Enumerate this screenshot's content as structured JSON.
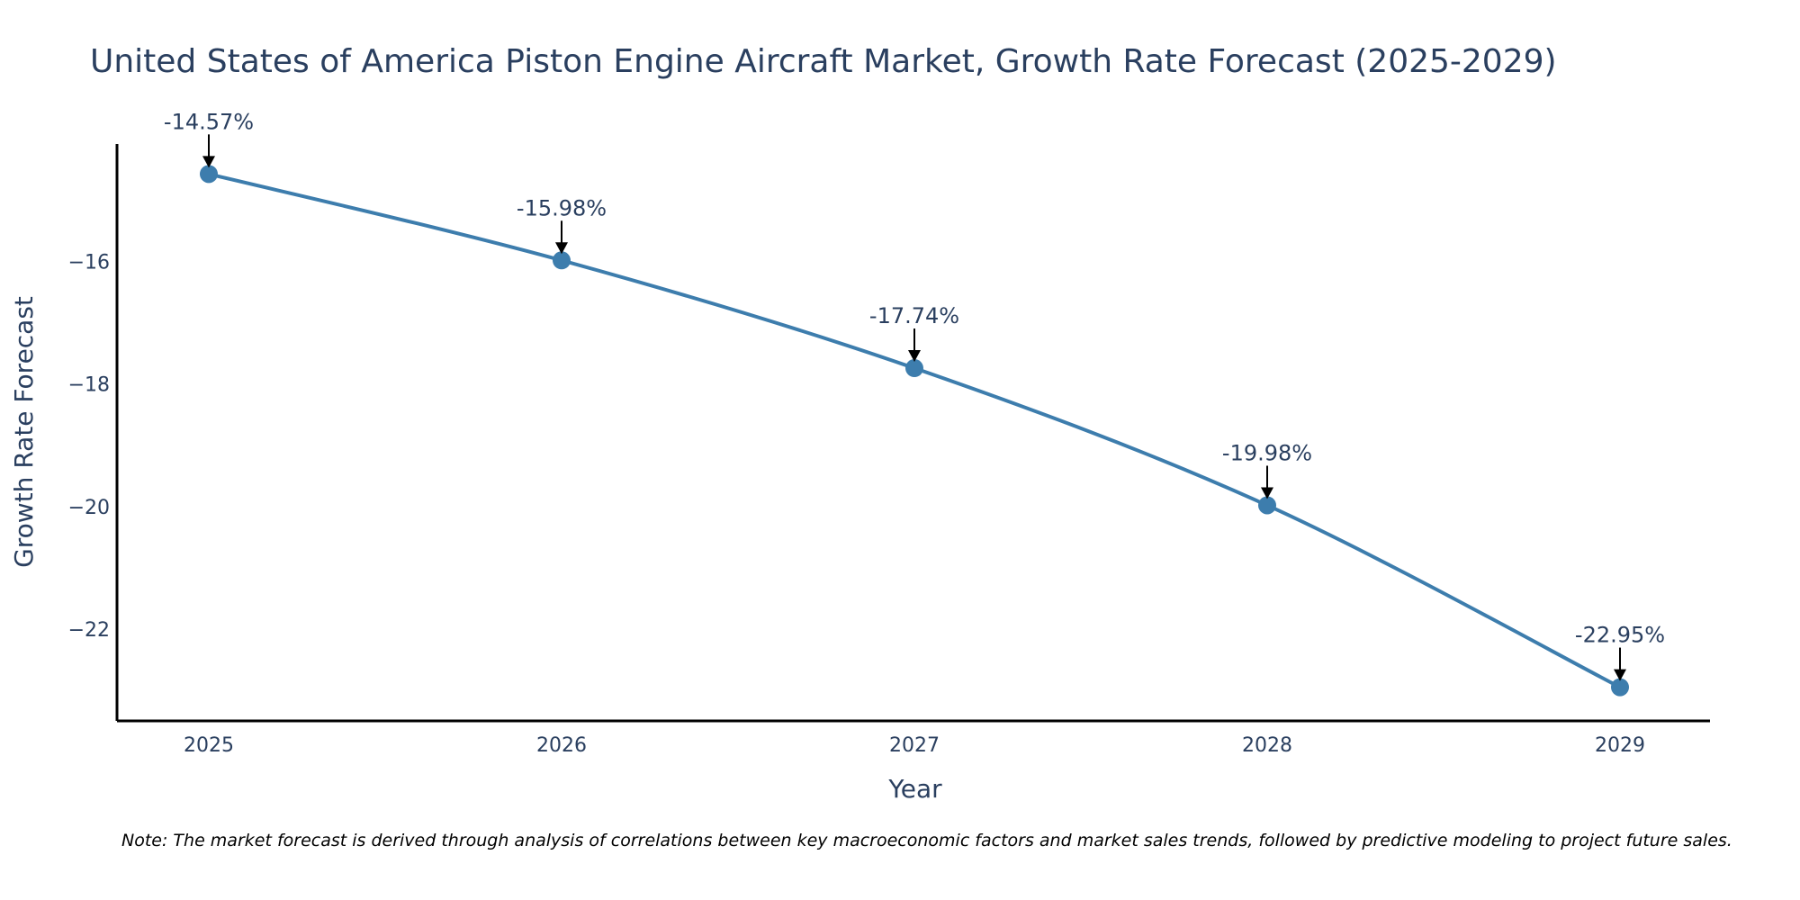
{
  "colors": {
    "line": "#3d7dad",
    "marker": "#3d7dad",
    "axis": "#000000",
    "text": "#2a3f5f",
    "arrow": "#000000"
  },
  "chart_data": {
    "type": "line",
    "title": "United States of America Piston Engine Aircraft Market, Growth Rate Forecast (2025-2029)",
    "xlabel": "Year",
    "ylabel": "Growth Rate Forecast",
    "categories": [
      "2025",
      "2026",
      "2027",
      "2028",
      "2029"
    ],
    "series": [
      {
        "name": "Growth Rate Forecast",
        "values": [
          -14.57,
          -15.98,
          -17.74,
          -19.98,
          -22.95
        ]
      }
    ],
    "data_labels": [
      "-14.57%",
      "-15.98%",
      "-17.74%",
      "-19.98%",
      "-22.95%"
    ],
    "y_ticks": [
      -16,
      -18,
      -20,
      -22
    ],
    "y_tick_labels": [
      "−16",
      "−18",
      "−20",
      "−22"
    ],
    "ylim": [
      -23.5,
      -14.08
    ],
    "grid": false,
    "legend": "none"
  },
  "note": "Note: The market forecast is derived through analysis of correlations between key macroeconomic factors and market sales trends, followed by predictive modeling to project future sales."
}
